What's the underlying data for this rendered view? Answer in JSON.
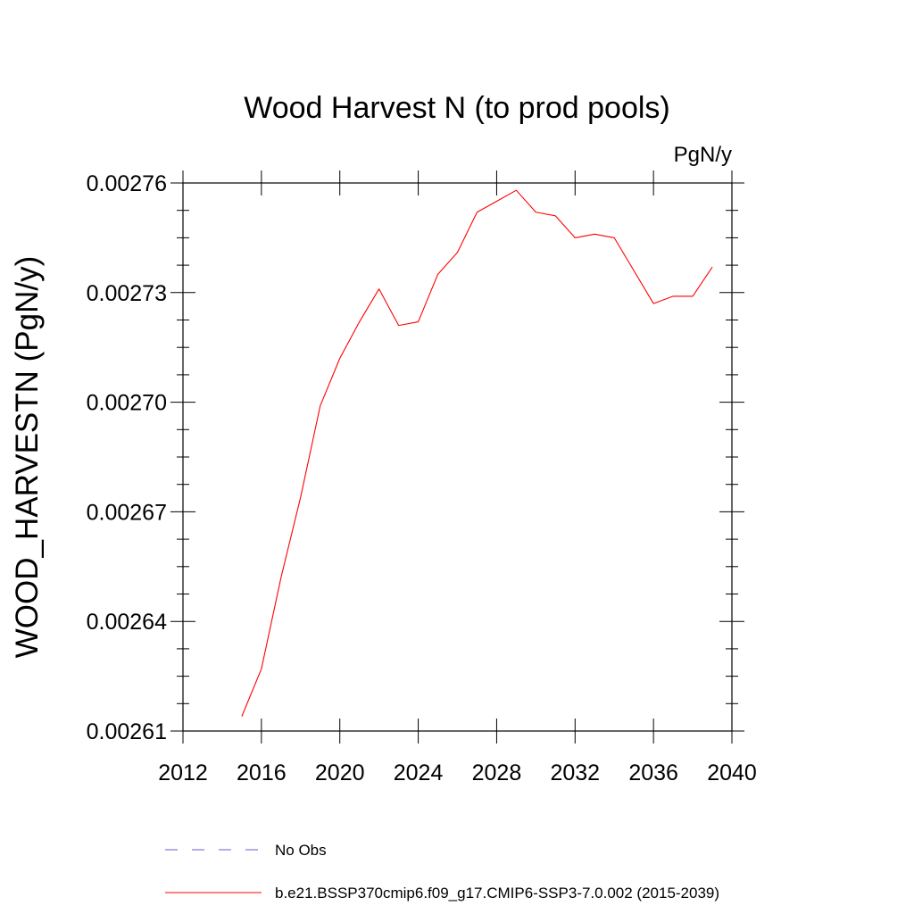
{
  "chart_data": {
    "type": "line",
    "title": "Wood Harvest N (to prod pools)",
    "units": "PgN/y",
    "ylabel": "WOOD_HARVESTN  (PgN/y)",
    "xlabel": "",
    "xlim": [
      2012,
      2040
    ],
    "ylim": [
      0.00261,
      0.00276
    ],
    "x_ticks": [
      2012,
      2016,
      2020,
      2024,
      2028,
      2032,
      2036,
      2040
    ],
    "x_tick_labels": [
      "2012",
      "2016",
      "2020",
      "2024",
      "2028",
      "2032",
      "2036",
      "2040"
    ],
    "y_ticks": [
      0.00261,
      0.00264,
      0.00267,
      0.0027,
      0.00273,
      0.00276
    ],
    "y_tick_labels": [
      "0.00261",
      "0.00264",
      "0.00267",
      "0.00270",
      "0.00273",
      "0.00276"
    ],
    "grid": false,
    "legend_position": "bottom",
    "series": [
      {
        "name": "No Obs",
        "color": "#6a5acd",
        "style": "dashed",
        "x": [],
        "y": []
      },
      {
        "name": "b.e21.BSSP370cmip6.f09_g17.CMIP6-SSP3-7.0.002 (2015-2039)",
        "color": "#ff0000",
        "style": "solid",
        "x": [
          2015,
          2016,
          2017,
          2018,
          2019,
          2020,
          2021,
          2022,
          2023,
          2024,
          2025,
          2026,
          2027,
          2028,
          2029,
          2030,
          2031,
          2032,
          2033,
          2034,
          2035,
          2036,
          2037,
          2038,
          2039
        ],
        "y": [
          0.002614,
          0.002627,
          0.002652,
          0.002674,
          0.002699,
          0.002712,
          0.002722,
          0.002731,
          0.002721,
          0.002722,
          0.002735,
          0.002741,
          0.002752,
          0.002755,
          0.002758,
          0.002752,
          0.002751,
          0.002745,
          0.002746,
          0.002745,
          0.002736,
          0.002727,
          0.002729,
          0.002729,
          0.002737
        ]
      }
    ]
  }
}
